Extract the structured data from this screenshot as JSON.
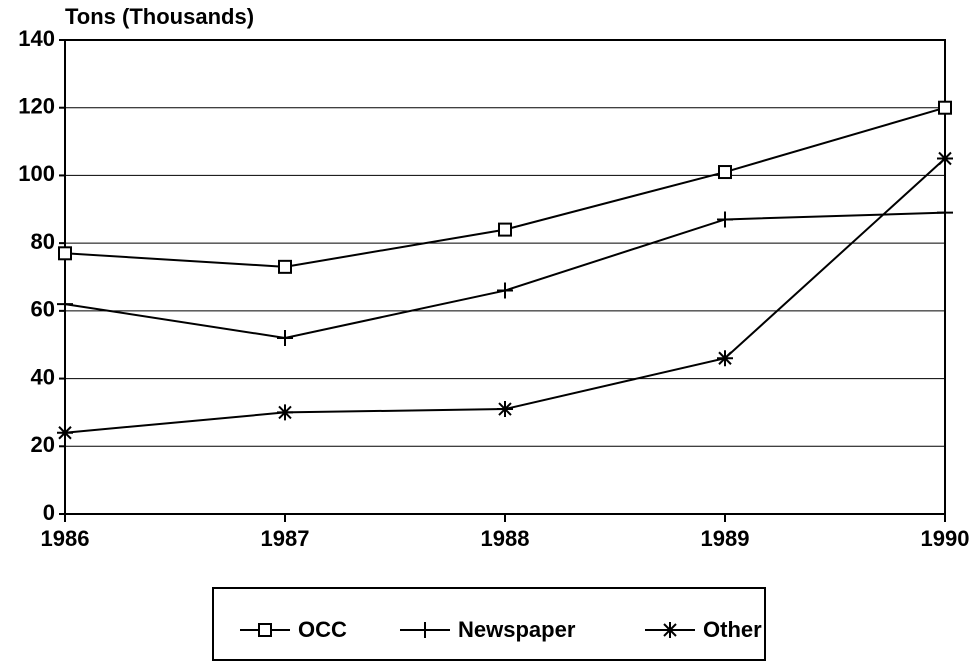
{
  "chart_data": {
    "type": "line",
    "y_label": "Tons (Thousands)",
    "x": [
      1986,
      1987,
      1988,
      1989,
      1990
    ],
    "xlim": [
      1986,
      1990
    ],
    "xticks": [
      1986,
      1987,
      1988,
      1989,
      1990
    ],
    "ylim": [
      0,
      140
    ],
    "yticks": [
      0,
      20,
      40,
      60,
      80,
      100,
      120,
      140
    ],
    "grid": true,
    "legend": "bottom",
    "series": [
      {
        "name": "OCC",
        "color": "#000000",
        "marker": "square",
        "values": [
          77,
          73,
          84,
          101,
          120
        ]
      },
      {
        "name": "Newspaper",
        "color": "#000000",
        "marker": "plus",
        "values": [
          62,
          52,
          66,
          87,
          89
        ]
      },
      {
        "name": "Other",
        "color": "#000000",
        "marker": "asterisk",
        "values": [
          24,
          30,
          31,
          46,
          105
        ]
      }
    ]
  }
}
